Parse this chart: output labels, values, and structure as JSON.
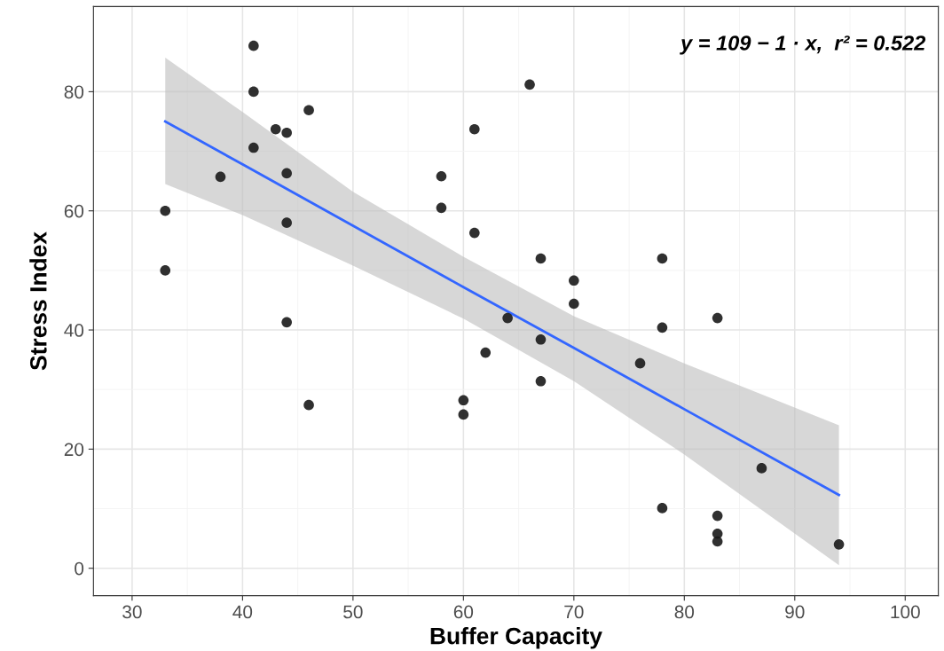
{
  "chart_data": {
    "type": "scatter",
    "xlabel": "Buffer Capacity",
    "ylabel": "Stress Index",
    "xlim": [
      26.5,
      103
    ],
    "ylim": [
      -4.6,
      94.3
    ],
    "xticks": [
      30,
      40,
      50,
      60,
      70,
      80,
      90,
      100
    ],
    "yticks": [
      0,
      20,
      40,
      60,
      80
    ],
    "grid": true,
    "annotations": [
      "y = 109 − 1 · x,  r² = 0.522"
    ],
    "series": [
      {
        "type": "line",
        "color": "#3366ff",
        "x": [
          33,
          40,
          50,
          60,
          70,
          80,
          94
        ],
        "values": [
          75,
          67.8,
          57.5,
          47.2,
          37.0,
          26.7,
          12.3
        ],
        "lower": [
          64.5,
          59.3,
          50.8,
          41.9,
          31.4,
          19.1,
          0.5
        ],
        "upper": [
          85.7,
          76.6,
          63.2,
          52.3,
          42.3,
          34.4,
          24
        ]
      },
      {
        "marker": "circle",
        "color": "#1a1a1a",
        "x": [
          33,
          33,
          38,
          41,
          41,
          41,
          43,
          44,
          44,
          44,
          44,
          46,
          46,
          58,
          58,
          61,
          61,
          60,
          60,
          62,
          64,
          67,
          67,
          67,
          70,
          70,
          66,
          76,
          78,
          78,
          78,
          83,
          83,
          83,
          83,
          87,
          94
        ],
        "values": [
          60,
          50,
          65.7,
          87.7,
          80,
          70.6,
          73.7,
          73.1,
          66.3,
          58,
          41.3,
          76.9,
          27.4,
          65.8,
          60.5,
          73.7,
          56.3,
          28.2,
          25.8,
          36.2,
          42,
          52,
          38.4,
          31.4,
          48.3,
          44.4,
          81.2,
          34.4,
          52,
          40.4,
          10.1,
          42,
          8.8,
          5.8,
          4.5,
          16.8,
          4
        ]
      }
    ]
  }
}
